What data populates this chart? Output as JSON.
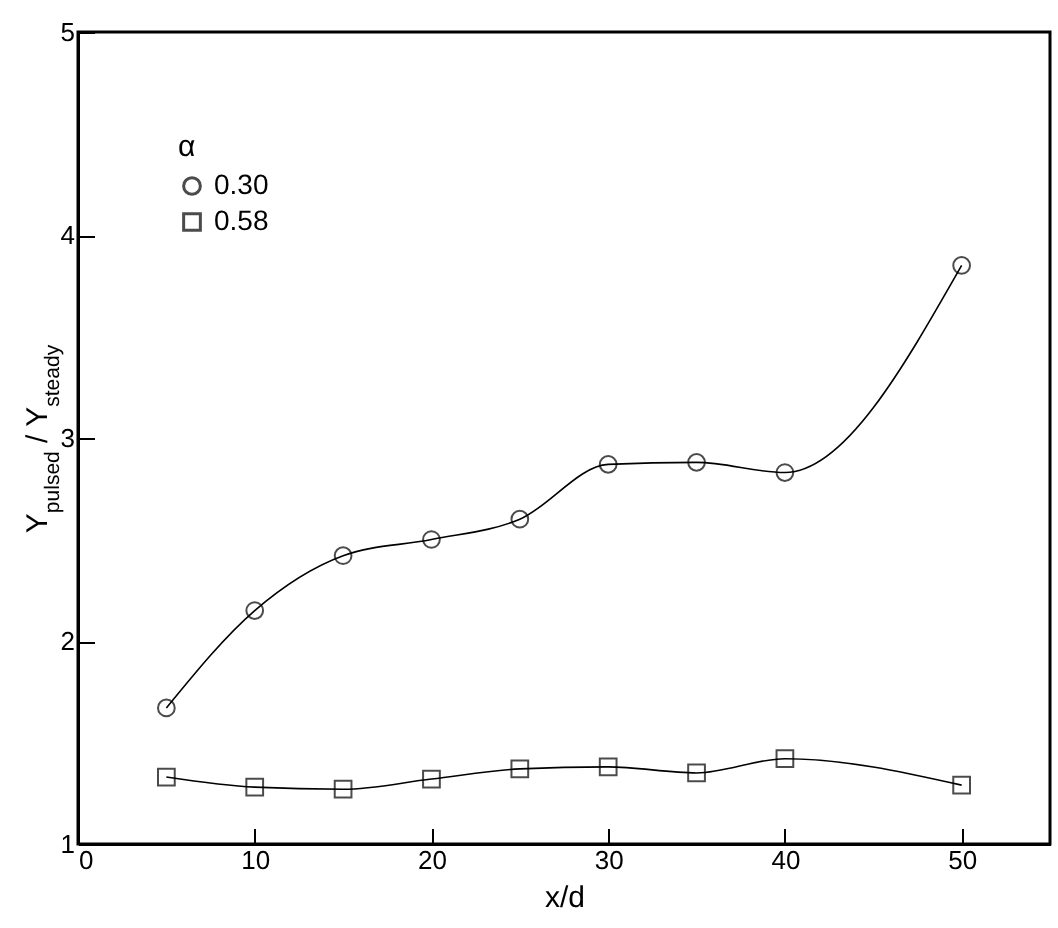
{
  "chart_data": {
    "type": "line",
    "xlabel": "x/d",
    "ylabel": "Y$_{pulsed}$ / Y$_{steady}$",
    "legend_title": "α",
    "legend": "top left",
    "xlim": [
      0,
      55
    ],
    "ylim": [
      1,
      5
    ],
    "xticks": [
      0,
      10,
      20,
      30,
      40,
      50
    ],
    "yticks": [
      1,
      2,
      3,
      4,
      5
    ],
    "grid": false,
    "line_style": "solid",
    "x": [
      5,
      10,
      15,
      20,
      25,
      30,
      35,
      40,
      50
    ],
    "series": [
      {
        "name": "0.30",
        "color": "#000000",
        "marker": "circle",
        "values": [
          1.67,
          2.15,
          2.42,
          2.5,
          2.6,
          2.87,
          2.88,
          2.83,
          3.85
        ]
      },
      {
        "name": "0.58",
        "color": "#000000",
        "marker": "square",
        "values": [
          1.33,
          1.28,
          1.27,
          1.32,
          1.37,
          1.38,
          1.35,
          1.42,
          1.29
        ]
      }
    ]
  }
}
